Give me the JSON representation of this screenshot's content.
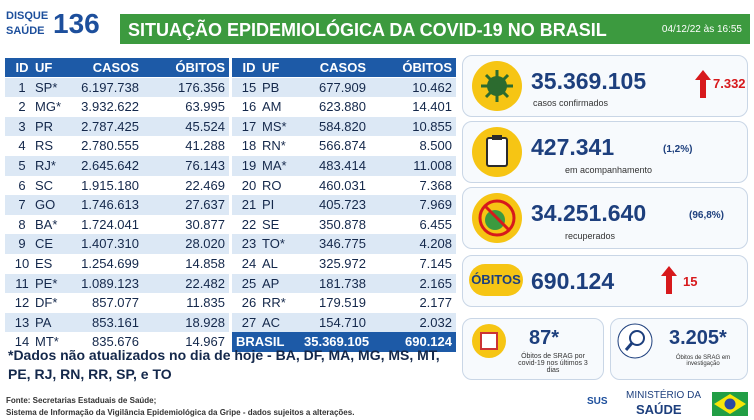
{
  "header": {
    "logo_top": "DISQUE",
    "logo_bottom": "SAÚDE",
    "logo_number": "136",
    "title": "SITUAÇÃO EPIDEMIOLÓGICA DA COVID-19 NO BRASIL",
    "date": "04/12/22 às 16:55"
  },
  "table_left": {
    "columns": [
      "ID",
      "UF",
      "CASOS",
      "ÓBITOS"
    ],
    "rows": [
      [
        "1",
        "SP*",
        "6.197.738",
        "176.356"
      ],
      [
        "2",
        "MG*",
        "3.932.622",
        "63.995"
      ],
      [
        "3",
        "PR",
        "2.787.425",
        "45.524"
      ],
      [
        "4",
        "RS",
        "2.780.555",
        "41.288"
      ],
      [
        "5",
        "RJ*",
        "2.645.642",
        "76.143"
      ],
      [
        "6",
        "SC",
        "1.915.180",
        "22.469"
      ],
      [
        "7",
        "GO",
        "1.746.613",
        "27.637"
      ],
      [
        "8",
        "BA*",
        "1.724.041",
        "30.877"
      ],
      [
        "9",
        "CE",
        "1.407.310",
        "28.020"
      ],
      [
        "10",
        "ES",
        "1.254.699",
        "14.858"
      ],
      [
        "11",
        "PE*",
        "1.089.123",
        "22.482"
      ],
      [
        "12",
        "DF*",
        "857.077",
        "11.835"
      ],
      [
        "13",
        "PA",
        "853.161",
        "18.928"
      ],
      [
        "14",
        "MT*",
        "835.676",
        "14.967"
      ]
    ]
  },
  "table_right": {
    "columns": [
      "ID",
      "UF",
      "CASOS",
      "ÓBITOS"
    ],
    "rows": [
      [
        "15",
        "PB",
        "677.909",
        "10.462"
      ],
      [
        "16",
        "AM",
        "623.880",
        "14.401"
      ],
      [
        "17",
        "MS*",
        "584.820",
        "10.855"
      ],
      [
        "18",
        "RN*",
        "566.874",
        "8.500"
      ],
      [
        "19",
        "MA*",
        "483.414",
        "11.008"
      ],
      [
        "20",
        "RO",
        "460.031",
        "7.368"
      ],
      [
        "21",
        "PI",
        "405.723",
        "7.969"
      ],
      [
        "22",
        "SE",
        "350.878",
        "6.455"
      ],
      [
        "23",
        "TO*",
        "346.775",
        "4.208"
      ],
      [
        "24",
        "AL",
        "325.972",
        "7.145"
      ],
      [
        "25",
        "AP",
        "181.738",
        "2.165"
      ],
      [
        "26",
        "RR*",
        "179.519",
        "2.177"
      ],
      [
        "27",
        "AC",
        "154.710",
        "2.032"
      ]
    ],
    "total": [
      "BRASIL",
      "35.369.105",
      "690.124"
    ]
  },
  "cards": {
    "confirmed": {
      "value": "35.369.105",
      "new": "7.332",
      "label": "casos confirmados"
    },
    "monitoring": {
      "value": "427.341",
      "percent": "(1,2%)",
      "label": "em acompanhamento"
    },
    "recovered": {
      "value": "34.251.640",
      "percent": "(96,8%)",
      "label": "recuperados"
    },
    "deaths": {
      "title": "ÓBITOS",
      "value": "690.124",
      "new": "15"
    },
    "srag": {
      "value": "87*",
      "label": "Óbitos de SRAG por covid-19 nos últimos 3 dias"
    },
    "investigation": {
      "value": "3.205*",
      "label": "Óbitos de SRAG em investigação"
    }
  },
  "footnote": "*Dados não atualizados no dia de hoje - BA, DF, MA, MG, MS, MT, PE, RJ, RN, RR, SP, e TO",
  "source": [
    "Fonte: Secretarias Estaduais de Saúde;",
    "Sistema de Informação da Vigilância Epidemiológica da Gripe - dados sujeitos a alterações."
  ],
  "footer": {
    "sus": "SUS",
    "ministry_top": "MINISTÉRIO DA",
    "ministry_bottom": "SAÚDE"
  }
}
